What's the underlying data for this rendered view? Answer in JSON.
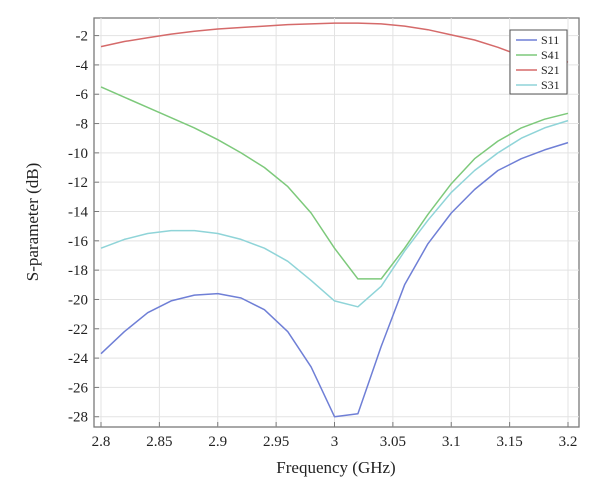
{
  "chart_data": {
    "type": "line",
    "title": "",
    "xlabel": "Frequency (GHz)",
    "ylabel": "S-parameter (dB)",
    "xlim": [
      2.8,
      3.2
    ],
    "ylim": [
      -28.7,
      -0.8
    ],
    "grid": true,
    "legend_position": "top-right",
    "x": [
      2.8,
      2.82,
      2.84,
      2.86,
      2.88,
      2.9,
      2.92,
      2.94,
      2.96,
      2.98,
      3.0,
      3.02,
      3.04,
      3.06,
      3.08,
      3.1,
      3.12,
      3.14,
      3.16,
      3.18,
      3.2
    ],
    "x_ticks": [
      "2.8",
      "2.85",
      "2.9",
      "2.95",
      "3",
      "3.05",
      "3.1",
      "3.15",
      "3.2"
    ],
    "x_tick_values": [
      2.8,
      2.85,
      2.9,
      2.95,
      3.0,
      3.05,
      3.1,
      3.15,
      3.2
    ],
    "y_ticks": [
      "-2",
      "-4",
      "-6",
      "-8",
      "-10",
      "-12",
      "-14",
      "-16",
      "-18",
      "-20",
      "-22",
      "-24",
      "-26",
      "-28"
    ],
    "y_tick_values": [
      -2,
      -4,
      -6,
      -8,
      -10,
      -12,
      -14,
      -16,
      -18,
      -20,
      -22,
      -24,
      -26,
      -28
    ],
    "series": [
      {
        "name": "S11",
        "color": "#6f7fd6",
        "values": [
          -23.7,
          -22.2,
          -20.9,
          -20.1,
          -19.7,
          -19.6,
          -19.9,
          -20.7,
          -22.2,
          -24.6,
          -28.0,
          -27.8,
          -23.2,
          -19.0,
          -16.2,
          -14.1,
          -12.5,
          -11.2,
          -10.4,
          -9.8,
          -9.3
        ]
      },
      {
        "name": "S41",
        "color": "#7dc97b",
        "values": [
          -5.5,
          -6.2,
          -6.9,
          -7.6,
          -8.3,
          -9.1,
          -10.0,
          -11.0,
          -12.3,
          -14.1,
          -16.5,
          -18.6,
          -18.6,
          -16.5,
          -14.2,
          -12.1,
          -10.4,
          -9.2,
          -8.3,
          -7.7,
          -7.3
        ]
      },
      {
        "name": "S21",
        "color": "#d56a6a",
        "values": [
          -2.75,
          -2.4,
          -2.15,
          -1.9,
          -1.7,
          -1.55,
          -1.45,
          -1.35,
          -1.25,
          -1.2,
          -1.15,
          -1.15,
          -1.2,
          -1.35,
          -1.6,
          -1.95,
          -2.3,
          -2.8,
          -3.4,
          -3.6,
          -3.8
        ]
      },
      {
        "name": "S31",
        "color": "#8fd4d8",
        "values": [
          -16.5,
          -15.9,
          -15.5,
          -15.3,
          -15.3,
          -15.5,
          -15.9,
          -16.5,
          -17.4,
          -18.7,
          -20.1,
          -20.5,
          -19.1,
          -16.7,
          -14.6,
          -12.7,
          -11.2,
          -10.0,
          -9.0,
          -8.3,
          -7.8
        ]
      }
    ]
  }
}
